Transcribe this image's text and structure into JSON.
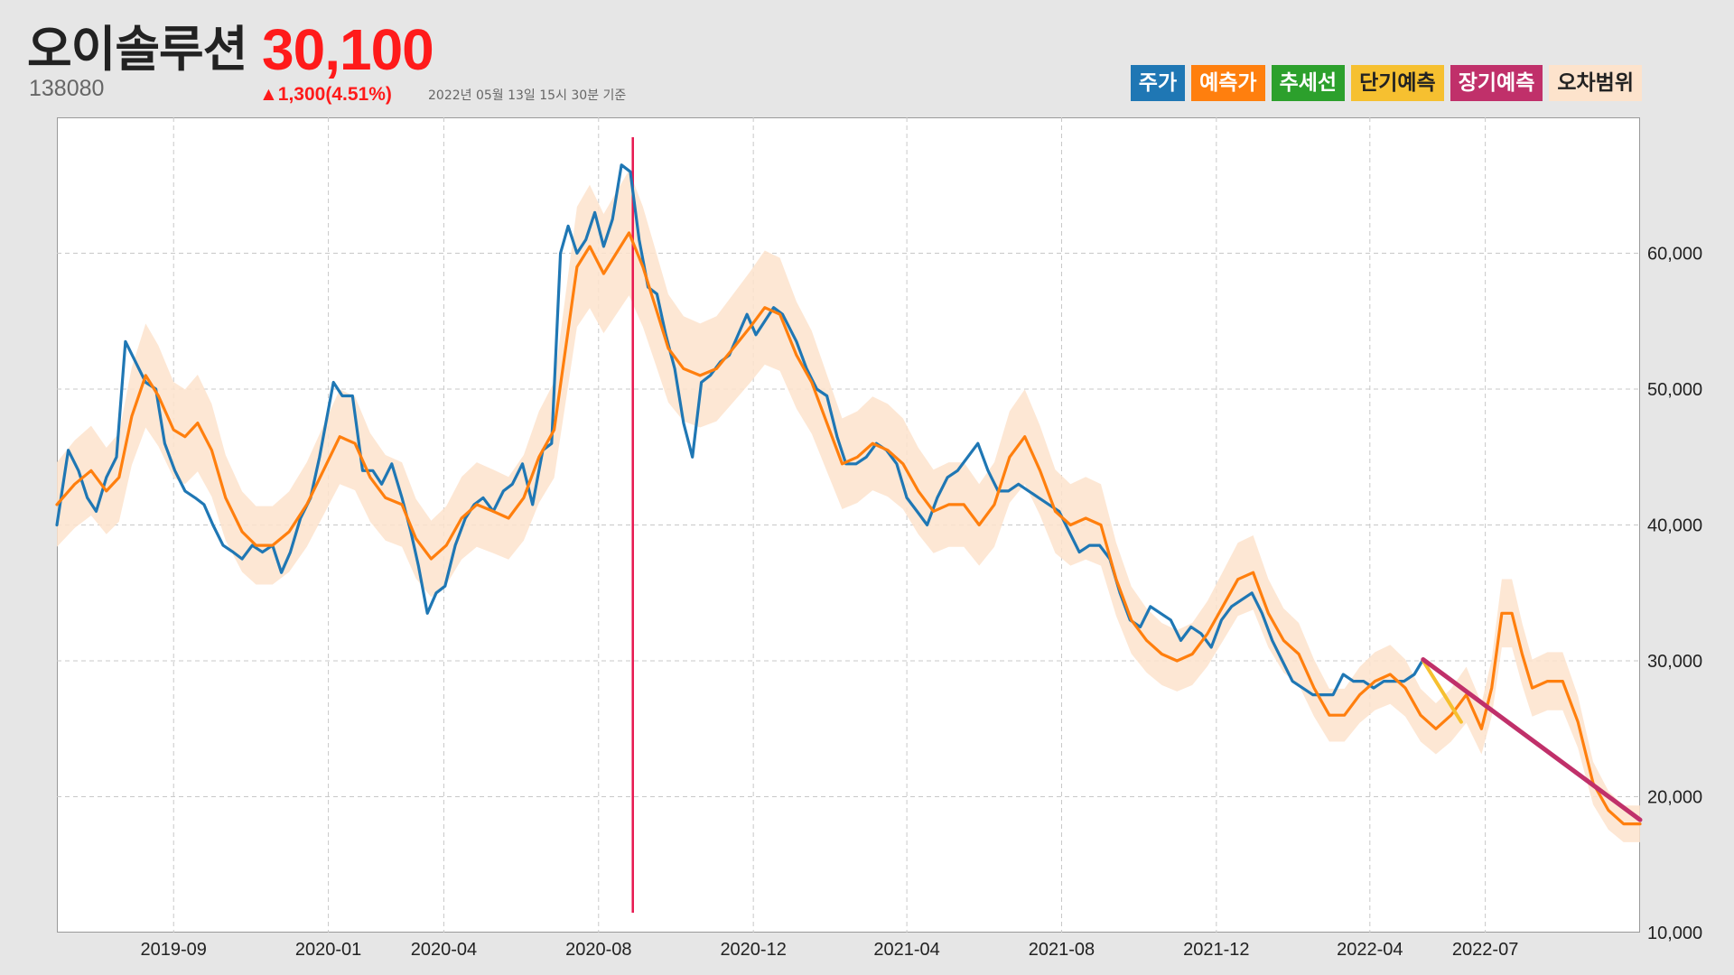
{
  "stock": {
    "name": "오이솔루션",
    "price": "30,100",
    "code": "138080",
    "change": "▲1,300(4.51%)",
    "asof": "2022년 05월 13일 15시 30분 기준"
  },
  "legend": [
    {
      "label": "주가",
      "color": "#1f77b4",
      "text_color": "#ffffff"
    },
    {
      "label": "예측가",
      "color": "#ff7f0e",
      "text_color": "#ffffff"
    },
    {
      "label": "추세선",
      "color": "#2ca02c",
      "text_color": "#ffffff"
    },
    {
      "label": "단기예측",
      "color": "#f6c030",
      "text_color": "#222222"
    },
    {
      "label": "장기예측",
      "color": "#c0306a",
      "text_color": "#ffffff"
    },
    {
      "label": "오차범위",
      "color": "#fde3cc",
      "text_color": "#222222"
    }
  ],
  "chart_data": {
    "type": "line",
    "x_tick_labels": [
      "2019-09",
      "2020-01",
      "2020-04",
      "2020-08",
      "2020-12",
      "2021-04",
      "2021-08",
      "2021-12",
      "2022-04",
      "2022-07"
    ],
    "y_tick_labels": [
      "10,000",
      "20,000",
      "30,000",
      "40,000",
      "50,000",
      "60,000"
    ],
    "ylim": [
      10000,
      70000
    ],
    "xlim": [
      "2019-06-01",
      "2022-10-31"
    ],
    "y_axis_position": "right",
    "grid": true,
    "marker_line_date": "2020-08-28",
    "series": [
      {
        "name": "주가",
        "color": "#1f77b4",
        "points": [
          [
            "2019-06-01",
            40000
          ],
          [
            "2019-06-10",
            45500
          ],
          [
            "2019-06-18",
            44000
          ],
          [
            "2019-06-25",
            42000
          ],
          [
            "2019-07-02",
            41000
          ],
          [
            "2019-07-10",
            43500
          ],
          [
            "2019-07-18",
            45000
          ],
          [
            "2019-07-25",
            53500
          ],
          [
            "2019-08-02",
            52000
          ],
          [
            "2019-08-10",
            50500
          ],
          [
            "2019-08-18",
            50000
          ],
          [
            "2019-08-25",
            46000
          ],
          [
            "2019-09-02",
            44000
          ],
          [
            "2019-09-10",
            42500
          ],
          [
            "2019-09-18",
            42000
          ],
          [
            "2019-09-25",
            41500
          ],
          [
            "2019-10-02",
            40000
          ],
          [
            "2019-10-10",
            38500
          ],
          [
            "2019-10-18",
            38000
          ],
          [
            "2019-10-25",
            37500
          ],
          [
            "2019-11-02",
            38500
          ],
          [
            "2019-11-10",
            38000
          ],
          [
            "2019-11-18",
            38500
          ],
          [
            "2019-11-25",
            36500
          ],
          [
            "2019-12-02",
            38000
          ],
          [
            "2019-12-10",
            40500
          ],
          [
            "2019-12-18",
            42000
          ],
          [
            "2019-12-25",
            45000
          ],
          [
            "2020-01-05",
            50500
          ],
          [
            "2020-01-12",
            49500
          ],
          [
            "2020-01-20",
            49500
          ],
          [
            "2020-01-28",
            44000
          ],
          [
            "2020-02-05",
            44000
          ],
          [
            "2020-02-12",
            43000
          ],
          [
            "2020-02-20",
            44500
          ],
          [
            "2020-02-28",
            42000
          ],
          [
            "2020-03-06",
            39500
          ],
          [
            "2020-03-12",
            37000
          ],
          [
            "2020-03-19",
            33500
          ],
          [
            "2020-03-26",
            35000
          ],
          [
            "2020-04-02",
            35500
          ],
          [
            "2020-04-10",
            38500
          ],
          [
            "2020-04-18",
            40500
          ],
          [
            "2020-04-25",
            41500
          ],
          [
            "2020-05-02",
            42000
          ],
          [
            "2020-05-10",
            41000
          ],
          [
            "2020-05-18",
            42500
          ],
          [
            "2020-05-25",
            43000
          ],
          [
            "2020-06-02",
            44500
          ],
          [
            "2020-06-10",
            41500
          ],
          [
            "2020-06-18",
            45500
          ],
          [
            "2020-06-25",
            46000
          ],
          [
            "2020-07-02",
            60000
          ],
          [
            "2020-07-08",
            62000
          ],
          [
            "2020-07-15",
            60000
          ],
          [
            "2020-07-22",
            61000
          ],
          [
            "2020-07-29",
            63000
          ],
          [
            "2020-08-05",
            60500
          ],
          [
            "2020-08-12",
            62500
          ],
          [
            "2020-08-19",
            66500
          ],
          [
            "2020-08-26",
            66000
          ],
          [
            "2020-09-02",
            61000
          ],
          [
            "2020-09-09",
            57500
          ],
          [
            "2020-09-16",
            57000
          ],
          [
            "2020-09-23",
            54000
          ],
          [
            "2020-09-30",
            51500
          ],
          [
            "2020-10-07",
            47500
          ],
          [
            "2020-10-14",
            45000
          ],
          [
            "2020-10-21",
            50500
          ],
          [
            "2020-10-28",
            51000
          ],
          [
            "2020-11-05",
            52000
          ],
          [
            "2020-11-12",
            52500
          ],
          [
            "2020-11-19",
            54000
          ],
          [
            "2020-11-26",
            55500
          ],
          [
            "2020-12-03",
            54000
          ],
          [
            "2020-12-10",
            55000
          ],
          [
            "2020-12-17",
            56000
          ],
          [
            "2020-12-24",
            55500
          ],
          [
            "2021-01-04",
            53500
          ],
          [
            "2021-01-12",
            51500
          ],
          [
            "2021-01-20",
            50000
          ],
          [
            "2021-01-28",
            49500
          ],
          [
            "2021-02-05",
            46500
          ],
          [
            "2021-02-12",
            44500
          ],
          [
            "2021-02-20",
            44500
          ],
          [
            "2021-02-28",
            45000
          ],
          [
            "2021-03-08",
            46000
          ],
          [
            "2021-03-16",
            45500
          ],
          [
            "2021-03-24",
            44500
          ],
          [
            "2021-04-01",
            42000
          ],
          [
            "2021-04-09",
            41000
          ],
          [
            "2021-04-17",
            40000
          ],
          [
            "2021-04-25",
            42000
          ],
          [
            "2021-05-03",
            43500
          ],
          [
            "2021-05-11",
            44000
          ],
          [
            "2021-05-19",
            45000
          ],
          [
            "2021-05-27",
            46000
          ],
          [
            "2021-06-04",
            44000
          ],
          [
            "2021-06-12",
            42500
          ],
          [
            "2021-06-20",
            42500
          ],
          [
            "2021-06-28",
            43000
          ],
          [
            "2021-07-06",
            42500
          ],
          [
            "2021-07-14",
            42000
          ],
          [
            "2021-07-22",
            41500
          ],
          [
            "2021-07-30",
            41000
          ],
          [
            "2021-08-07",
            39500
          ],
          [
            "2021-08-15",
            38000
          ],
          [
            "2021-08-23",
            38500
          ],
          [
            "2021-08-31",
            38500
          ],
          [
            "2021-09-08",
            37500
          ],
          [
            "2021-09-16",
            35000
          ],
          [
            "2021-09-24",
            33000
          ],
          [
            "2021-10-02",
            32500
          ],
          [
            "2021-10-10",
            34000
          ],
          [
            "2021-10-18",
            33500
          ],
          [
            "2021-10-26",
            33000
          ],
          [
            "2021-11-03",
            31500
          ],
          [
            "2021-11-11",
            32500
          ],
          [
            "2021-11-19",
            32000
          ],
          [
            "2021-11-27",
            31000
          ],
          [
            "2021-12-05",
            33000
          ],
          [
            "2021-12-13",
            34000
          ],
          [
            "2021-12-21",
            34500
          ],
          [
            "2021-12-29",
            35000
          ],
          [
            "2022-01-06",
            33500
          ],
          [
            "2022-01-14",
            31500
          ],
          [
            "2022-01-22",
            30000
          ],
          [
            "2022-01-30",
            28500
          ],
          [
            "2022-02-07",
            28000
          ],
          [
            "2022-02-15",
            27500
          ],
          [
            "2022-02-23",
            27500
          ],
          [
            "2022-03-03",
            27500
          ],
          [
            "2022-03-11",
            29000
          ],
          [
            "2022-03-19",
            28500
          ],
          [
            "2022-03-27",
            28500
          ],
          [
            "2022-04-04",
            28000
          ],
          [
            "2022-04-12",
            28500
          ],
          [
            "2022-04-20",
            28500
          ],
          [
            "2022-04-28",
            28500
          ],
          [
            "2022-05-06",
            29000
          ],
          [
            "2022-05-13",
            30100
          ]
        ]
      },
      {
        "name": "예측가",
        "color": "#ff7f0e",
        "points": [
          [
            "2019-06-01",
            41500
          ],
          [
            "2019-06-15",
            43000
          ],
          [
            "2019-06-28",
            44000
          ],
          [
            "2019-07-10",
            42500
          ],
          [
            "2019-07-20",
            43500
          ],
          [
            "2019-07-30",
            48000
          ],
          [
            "2019-08-10",
            51000
          ],
          [
            "2019-08-20",
            49500
          ],
          [
            "2019-09-01",
            47000
          ],
          [
            "2019-09-10",
            46500
          ],
          [
            "2019-09-20",
            47500
          ],
          [
            "2019-10-01",
            45500
          ],
          [
            "2019-10-12",
            42000
          ],
          [
            "2019-10-25",
            39500
          ],
          [
            "2019-11-05",
            38500
          ],
          [
            "2019-11-18",
            38500
          ],
          [
            "2019-12-01",
            39500
          ],
          [
            "2019-12-15",
            41500
          ],
          [
            "2019-12-28",
            44000
          ],
          [
            "2020-01-10",
            46500
          ],
          [
            "2020-01-22",
            46000
          ],
          [
            "2020-02-03",
            43500
          ],
          [
            "2020-02-15",
            42000
          ],
          [
            "2020-02-28",
            41500
          ],
          [
            "2020-03-10",
            39000
          ],
          [
            "2020-03-22",
            37500
          ],
          [
            "2020-04-03",
            38500
          ],
          [
            "2020-04-15",
            40500
          ],
          [
            "2020-04-27",
            41500
          ],
          [
            "2020-05-10",
            41000
          ],
          [
            "2020-05-22",
            40500
          ],
          [
            "2020-06-03",
            42000
          ],
          [
            "2020-06-15",
            45000
          ],
          [
            "2020-06-27",
            47000
          ],
          [
            "2020-07-06",
            53000
          ],
          [
            "2020-07-15",
            59000
          ],
          [
            "2020-07-25",
            60500
          ],
          [
            "2020-08-05",
            58500
          ],
          [
            "2020-08-15",
            60000
          ],
          [
            "2020-08-25",
            61500
          ],
          [
            "2020-09-05",
            59000
          ],
          [
            "2020-09-15",
            56000
          ],
          [
            "2020-09-25",
            53000
          ],
          [
            "2020-10-07",
            51500
          ],
          [
            "2020-10-20",
            51000
          ],
          [
            "2020-11-02",
            51500
          ],
          [
            "2020-11-15",
            53000
          ],
          [
            "2020-11-28",
            54500
          ],
          [
            "2020-12-10",
            56000
          ],
          [
            "2020-12-22",
            55500
          ],
          [
            "2021-01-04",
            52500
          ],
          [
            "2021-01-16",
            50500
          ],
          [
            "2021-01-28",
            47500
          ],
          [
            "2021-02-09",
            44500
          ],
          [
            "2021-02-21",
            45000
          ],
          [
            "2021-03-05",
            46000
          ],
          [
            "2021-03-17",
            45500
          ],
          [
            "2021-03-29",
            44500
          ],
          [
            "2021-04-10",
            42500
          ],
          [
            "2021-04-22",
            41000
          ],
          [
            "2021-05-04",
            41500
          ],
          [
            "2021-05-16",
            41500
          ],
          [
            "2021-05-28",
            40000
          ],
          [
            "2021-06-09",
            41500
          ],
          [
            "2021-06-21",
            45000
          ],
          [
            "2021-07-03",
            46500
          ],
          [
            "2021-07-15",
            44000
          ],
          [
            "2021-07-27",
            41000
          ],
          [
            "2021-08-08",
            40000
          ],
          [
            "2021-08-20",
            40500
          ],
          [
            "2021-09-01",
            40000
          ],
          [
            "2021-09-13",
            36000
          ],
          [
            "2021-09-25",
            33000
          ],
          [
            "2021-10-07",
            31500
          ],
          [
            "2021-10-19",
            30500
          ],
          [
            "2021-10-31",
            30000
          ],
          [
            "2021-11-12",
            30500
          ],
          [
            "2021-11-24",
            32000
          ],
          [
            "2021-12-06",
            34000
          ],
          [
            "2021-12-18",
            36000
          ],
          [
            "2021-12-30",
            36500
          ],
          [
            "2022-01-11",
            33500
          ],
          [
            "2022-01-23",
            31500
          ],
          [
            "2022-02-04",
            30500
          ],
          [
            "2022-02-16",
            28000
          ],
          [
            "2022-02-28",
            26000
          ],
          [
            "2022-03-12",
            26000
          ],
          [
            "2022-03-24",
            27500
          ],
          [
            "2022-04-05",
            28500
          ],
          [
            "2022-04-17",
            29000
          ],
          [
            "2022-04-29",
            28000
          ],
          [
            "2022-05-11",
            26000
          ],
          [
            "2022-05-23",
            25000
          ],
          [
            "2022-06-04",
            26000
          ],
          [
            "2022-06-16",
            27500
          ],
          [
            "2022-06-28",
            25000
          ],
          [
            "2022-07-06",
            28000
          ],
          [
            "2022-07-14",
            33500
          ],
          [
            "2022-07-22",
            33500
          ],
          [
            "2022-07-30",
            30500
          ],
          [
            "2022-08-07",
            28000
          ],
          [
            "2022-08-19",
            28500
          ],
          [
            "2022-08-31",
            28500
          ],
          [
            "2022-09-12",
            25500
          ],
          [
            "2022-09-24",
            21000
          ],
          [
            "2022-10-06",
            19000
          ],
          [
            "2022-10-18",
            18000
          ],
          [
            "2022-10-31",
            18000
          ]
        ]
      },
      {
        "name": "단기예측",
        "color": "#f6c030",
        "points": [
          [
            "2022-05-13",
            30000
          ],
          [
            "2022-06-12",
            25500
          ]
        ]
      },
      {
        "name": "장기예측",
        "color": "#c0306a",
        "points": [
          [
            "2022-05-13",
            30100
          ],
          [
            "2022-10-31",
            18300
          ]
        ]
      }
    ]
  }
}
